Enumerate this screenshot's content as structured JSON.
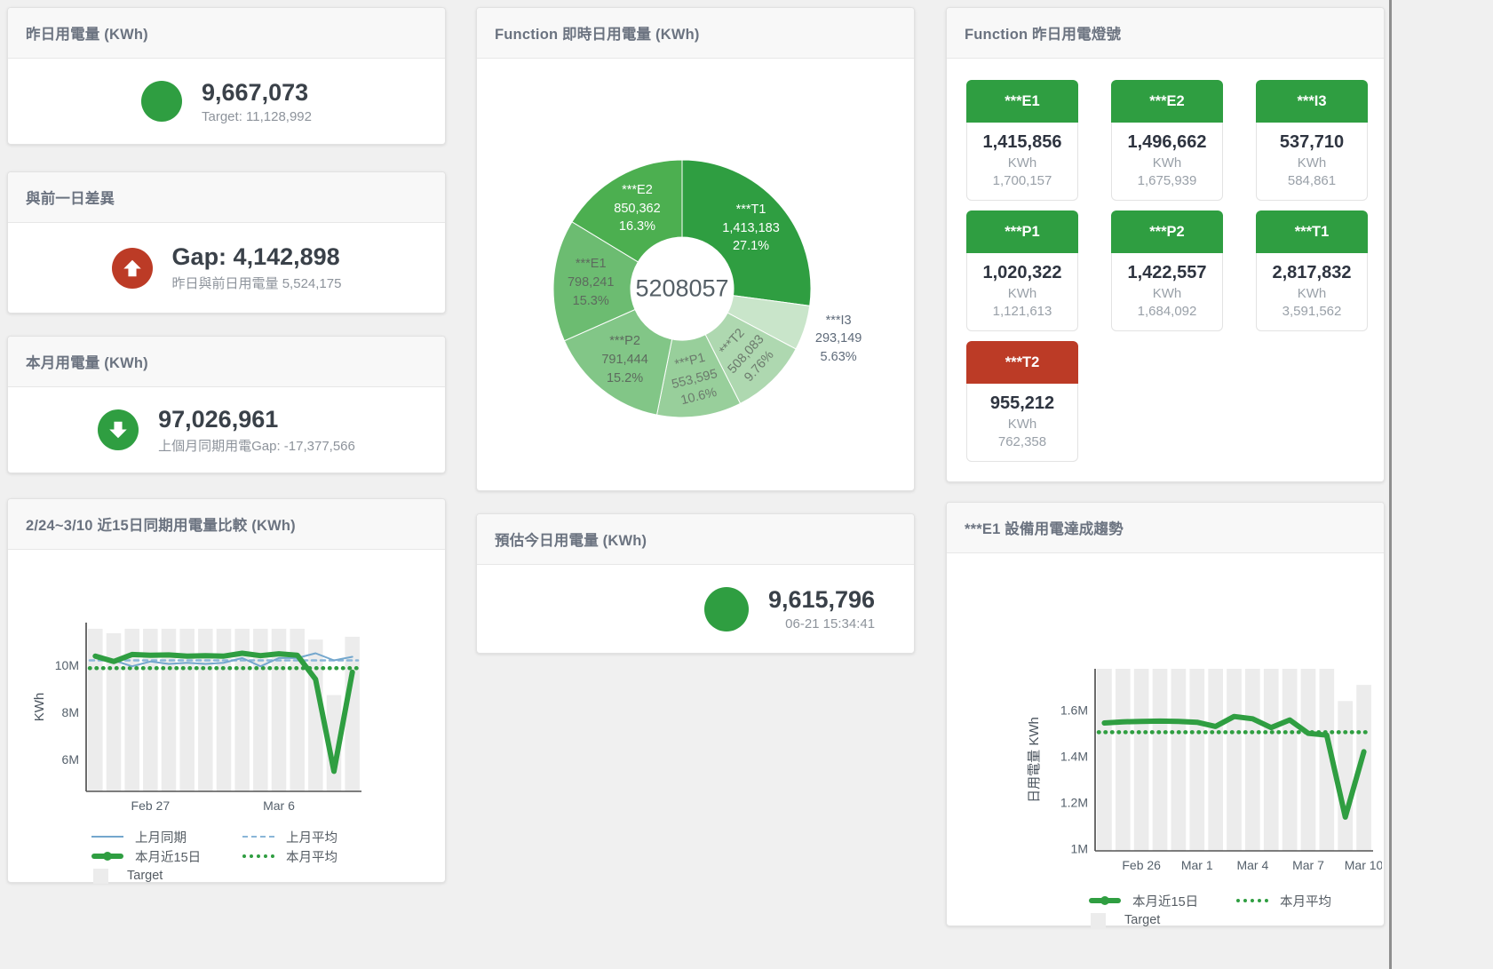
{
  "colors": {
    "green": "#2f9e41",
    "red": "#bc3b26",
    "blue": "#74a7cd",
    "blue_dashed": "#8ab6d8",
    "target_gray": "#ececec"
  },
  "cards": {
    "yesterday": {
      "title": "昨日用電量 (KWh)",
      "value": "9,667,073",
      "subtext": "Target: 11,128,992",
      "icon": "circle-icon"
    },
    "gap": {
      "title": "與前一日差異",
      "value": "Gap: 4,142,898",
      "subtext": "昨日與前日用電量 5,524,175",
      "icon": "up-arrow-icon"
    },
    "month": {
      "title": "本月用電量 (KWh)",
      "value": "97,026,961",
      "subtext": "上個月同期用電Gap: -17,377,566",
      "icon": "down-arrow-icon"
    },
    "estimate": {
      "title": "預估今日用電量 (KWh)",
      "value": "9,615,796",
      "subtext": "06-21 15:34:41",
      "icon": "circle-icon"
    },
    "realtime": {
      "title": "Function 即時日用電量 (KWh)"
    },
    "lights": {
      "title": "Function 昨日用電燈號",
      "tiles": [
        {
          "name": "***E1",
          "value": "1,415,856",
          "unit": "KWh",
          "target": "1,700,157",
          "status_color": "#2f9e41"
        },
        {
          "name": "***E2",
          "value": "1,496,662",
          "unit": "KWh",
          "target": "1,675,939",
          "status_color": "#2f9e41"
        },
        {
          "name": "***I3",
          "value": "537,710",
          "unit": "KWh",
          "target": "584,861",
          "status_color": "#2f9e41"
        },
        {
          "name": "***P1",
          "value": "1,020,322",
          "unit": "KWh",
          "target": "1,121,613",
          "status_color": "#2f9e41"
        },
        {
          "name": "***P2",
          "value": "1,422,557",
          "unit": "KWh",
          "target": "1,684,092",
          "status_color": "#2f9e41"
        },
        {
          "name": "***T1",
          "value": "2,817,832",
          "unit": "KWh",
          "target": "3,591,562",
          "status_color": "#2f9e41"
        },
        {
          "name": "***T2",
          "value": "955,212",
          "unit": "KWh",
          "target": "762,358",
          "status_color": "#bc3b26"
        }
      ]
    },
    "compare": {
      "title": "2/24~3/10 近15日同期用電量比較 (KWh)"
    },
    "trend": {
      "title": "***E1 設備用電達成趨勢"
    }
  },
  "chart_data": [
    {
      "type": "pie",
      "subtype": "donut",
      "title": "Function 即時日用電量 (KWh)",
      "center_total": "5208057",
      "slices": [
        {
          "name": "***T1",
          "value": 1413183,
          "value_label": "1,413,183",
          "pct": 27.1,
          "pct_label": "27.1%",
          "color": "#2f9e41",
          "text_color": "#ffffff",
          "label_pos": "in"
        },
        {
          "name": "***I3",
          "value": 293149,
          "value_label": "293,149",
          "pct": 5.63,
          "pct_label": "5.63%",
          "color": "#c9e5ca",
          "text_color": "#5f6b7a",
          "label_pos": "out"
        },
        {
          "name": "***T2",
          "value": 508083,
          "value_label": "508,083",
          "pct": 9.76,
          "pct_label": "9.76%",
          "color": "#aed8b0",
          "text_color": "#6b7a6c",
          "label_pos": "in",
          "rotate": -48
        },
        {
          "name": "***P1",
          "value": 553595,
          "value_label": "553,595",
          "pct": 10.6,
          "pct_label": "10.6%",
          "color": "#98cf9b",
          "text_color": "#6b7a6c",
          "label_pos": "in",
          "rotate": -14
        },
        {
          "name": "***P2",
          "value": 791444,
          "value_label": "791,444",
          "pct": 15.2,
          "pct_label": "15.2%",
          "color": "#82c687",
          "text_color": "#5d6b5e",
          "label_pos": "in"
        },
        {
          "name": "***E1",
          "value": 798241,
          "value_label": "798,241",
          "pct": 15.3,
          "pct_label": "15.3%",
          "color": "#6cbc71",
          "text_color": "#5d6b5e",
          "label_pos": "in"
        },
        {
          "name": "***E2",
          "value": 850362,
          "value_label": "850,362",
          "pct": 16.3,
          "pct_label": "16.3%",
          "color": "#4caf50",
          "text_color": "#ffffff",
          "label_pos": "in"
        }
      ]
    },
    {
      "type": "line",
      "title": "2/24~3/10 近15日同期用電量比較 (KWh)",
      "ylabel": "KWh",
      "n": 15,
      "ylim": [
        4650000,
        11800000
      ],
      "yticks": [
        {
          "v": 6000000,
          "label": "6M"
        },
        {
          "v": 8000000,
          "label": "8M"
        },
        {
          "v": 10000000,
          "label": "10M"
        }
      ],
      "xticks": [
        {
          "i": 3,
          "label": "Feb 27"
        },
        {
          "i": 10,
          "label": "Mar 6"
        }
      ],
      "target_bars": {
        "name": "Target",
        "color": "#ececec",
        "values": [
          11540000,
          11350000,
          11540000,
          11540000,
          11540000,
          11540000,
          11540000,
          11540000,
          11540000,
          11540000,
          11540000,
          11540000,
          11080000,
          8730000,
          11200000
        ]
      },
      "series": [
        {
          "name": "上月同期",
          "color": "#74a7cd",
          "width": 2,
          "values": [
            10450000,
            10200000,
            9950000,
            10150000,
            10050000,
            10100000,
            10050000,
            10100000,
            10300000,
            9950000,
            10300000,
            10300000,
            10500000,
            10200000,
            10350000
          ]
        },
        {
          "name": "上月平均",
          "color": "#8ab6d8",
          "width": 2.5,
          "dash": "5 5",
          "value": 10200000
        },
        {
          "name": "本月近15日",
          "color": "#2f9e41",
          "width": 6,
          "values": [
            10380000,
            10150000,
            10450000,
            10420000,
            10430000,
            10380000,
            10400000,
            10380000,
            10500000,
            10400000,
            10480000,
            10420000,
            9400000,
            5500000,
            9700000
          ]
        },
        {
          "name": "本月平均",
          "color": "#2f9e41",
          "width": 4.5,
          "dash": "0.5 7",
          "value": 9870000
        }
      ],
      "legend_position": "bottom"
    },
    {
      "type": "line",
      "title": "***E1 設備用電達成趨勢",
      "ylabel": "日用電量 KWh",
      "n": 15,
      "ylim": [
        990000,
        1780000
      ],
      "yticks": [
        {
          "v": 1000000,
          "label": "1M"
        },
        {
          "v": 1200000,
          "label": "1.2M"
        },
        {
          "v": 1400000,
          "label": "1.4M"
        },
        {
          "v": 1600000,
          "label": "1.6M"
        }
      ],
      "xticks": [
        {
          "i": 2,
          "label": "Feb 26"
        },
        {
          "i": 5,
          "label": "Mar 1"
        },
        {
          "i": 8,
          "label": "Mar 4"
        },
        {
          "i": 11,
          "label": "Mar 7"
        },
        {
          "i": 14,
          "label": "Mar 10"
        }
      ],
      "target_bars": {
        "name": "Target",
        "color": "#ececec",
        "values": [
          1780000,
          1780000,
          1780000,
          1780000,
          1780000,
          1780000,
          1780000,
          1780000,
          1780000,
          1780000,
          1780000,
          1780000,
          1780000,
          1640000,
          1710000
        ]
      },
      "series": [
        {
          "name": "本月近15日",
          "color": "#2f9e41",
          "width": 6,
          "values": [
            1545000,
            1550000,
            1552000,
            1553000,
            1552000,
            1548000,
            1530000,
            1573000,
            1563000,
            1525000,
            1558000,
            1500000,
            1492000,
            1137000,
            1420000
          ]
        },
        {
          "name": "本月平均",
          "color": "#2f9e41",
          "width": 4.5,
          "dash": "0.5 7",
          "value": 1505000
        }
      ],
      "legend_position": "bottom"
    }
  ]
}
